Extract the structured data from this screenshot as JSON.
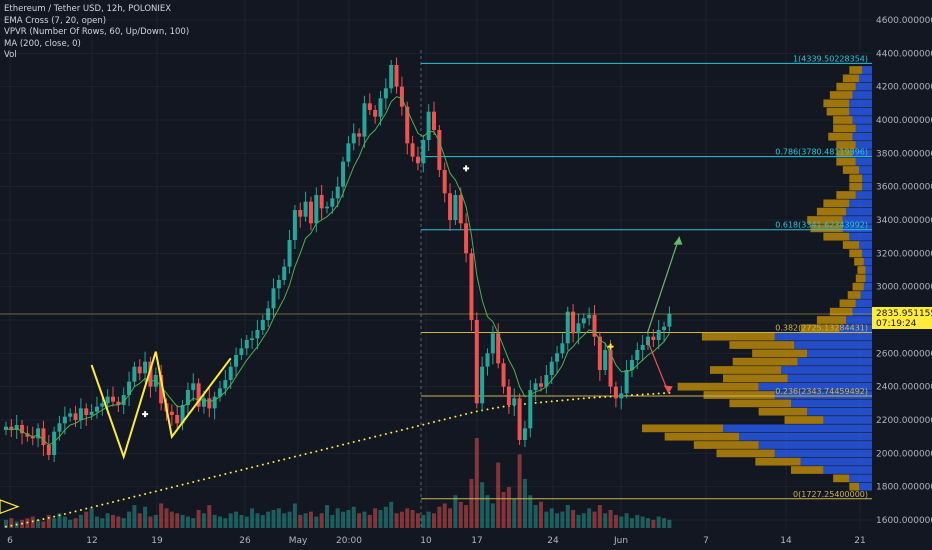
{
  "legend": {
    "symbol": "Ethereum / Tether USD, 12h, POLONIEX",
    "ema": "EMA Cross (7, 20, open)",
    "vpvr": "VPVR (Number Of Rows, 60, Up/Down, 100)",
    "ma": "MA (200, close, 0)",
    "vol": "Vol"
  },
  "price_tag": {
    "price": "2835.95115514",
    "timer": "07:19:24"
  },
  "colors": {
    "background": "#131722",
    "up": "#26a69a",
    "down": "#ef5350",
    "ema": "#4caf50",
    "ma200": "#ffeb3b",
    "fib_cyan": "#26c6da",
    "fib_yellow": "#c9b64a",
    "vp_gold": "#b8860b",
    "vp_blue": "#2962ff"
  },
  "chart_data": {
    "type": "candlestick",
    "y_axis": {
      "ticks": [
        "4600.00000000",
        "4400.00000000",
        "4200.00000000",
        "4000.00000000",
        "3800.00000000",
        "3600.00000000",
        "3400.00000000",
        "3200.00000000",
        "3000.00000000",
        "2800.00000000",
        "2600.00000000",
        "2400.00000000",
        "2200.00000000",
        "2000.00000000",
        "1800.00000000",
        "1600.00000000"
      ],
      "tick_values": [
        4600,
        4400,
        4200,
        4000,
        3800,
        3600,
        3400,
        3200,
        3000,
        2800,
        2600,
        2400,
        2200,
        2000,
        1800,
        1600
      ],
      "range": [
        1540,
        4720
      ]
    },
    "x_axis": {
      "ticks": [
        "6",
        "12",
        "19",
        "26",
        "May",
        "20:00",
        "10",
        "17",
        "24",
        "Jun",
        "7",
        "14",
        "21"
      ]
    },
    "fib_levels": [
      {
        "label": "1(4339.50228354)",
        "value": 4339.5
      },
      {
        "label": "0.786(3780.48119396)",
        "value": 3780.48
      },
      {
        "label": "0.618(3341.62343992)",
        "value": 3341.62
      },
      {
        "label": "0.382(2725.13284431)",
        "value": 2725.13
      },
      {
        "label": "0.236(2343.74459492)",
        "value": 2343.74
      },
      {
        "label": "0(1727.25400000)",
        "value": 1727.25
      }
    ],
    "closes": [
      2160,
      2140,
      2170,
      2120,
      2100,
      2090,
      2150,
      2050,
      1990,
      2130,
      2180,
      2220,
      2240,
      2200,
      2270,
      2230,
      2250,
      2280,
      2300,
      2340,
      2310,
      2290,
      2350,
      2430,
      2520,
      2480,
      2550,
      2400,
      2470,
      2300,
      2250,
      2230,
      2180,
      2290,
      2380,
      2420,
      2280,
      2330,
      2270,
      2340,
      2390,
      2440,
      2520,
      2590,
      2630,
      2680,
      2690,
      2740,
      2800,
      2870,
      2990,
      3040,
      3120,
      3280,
      3460,
      3420,
      3510,
      3380,
      3550,
      3470,
      3480,
      3530,
      3600,
      3750,
      3860,
      3920,
      3900,
      4100,
      4060,
      4020,
      4130,
      4190,
      4330,
      4200,
      4080,
      3860,
      3780,
      3740,
      3880,
      4050,
      3940,
      3700,
      3560,
      3400,
      3550,
      3380,
      3200,
      2800,
      2300,
      2520,
      2600,
      2720,
      2540,
      2400,
      2290,
      2330,
      2080,
      2150,
      2380,
      2420,
      2400,
      2470,
      2550,
      2600,
      2660,
      2850,
      2720,
      2780,
      2810,
      2830,
      2700,
      2500,
      2620,
      2400,
      2330,
      2360,
      2500,
      2560,
      2620,
      2650,
      2700,
      2680,
      2740,
      2760,
      2836
    ],
    "ema_values": [
      2150,
      2140,
      2150,
      2130,
      2115,
      2100,
      2110,
      2080,
      2050,
      2070,
      2100,
      2140,
      2170,
      2180,
      2200,
      2210,
      2220,
      2240,
      2260,
      2280,
      2290,
      2290,
      2310,
      2350,
      2400,
      2420,
      2450,
      2430,
      2440,
      2400,
      2360,
      2320,
      2280,
      2280,
      2300,
      2330,
      2320,
      2320,
      2310,
      2320,
      2340,
      2370,
      2410,
      2460,
      2510,
      2560,
      2600,
      2640,
      2690,
      2740,
      2810,
      2870,
      2930,
      3010,
      3120,
      3200,
      3290,
      3320,
      3380,
      3400,
      3420,
      3450,
      3490,
      3560,
      3640,
      3720,
      3780,
      3860,
      3910,
      3940,
      3990,
      4040,
      4110,
      4140,
      4130,
      4060,
      3990,
      3920,
      3900,
      3930,
      3930,
      3870,
      3780,
      3680,
      3640,
      3570,
      3480,
      3310,
      3070,
      2920,
      2820,
      2790,
      2720,
      2640,
      2560,
      2500,
      2400,
      2340,
      2350,
      2370,
      2380,
      2400,
      2440,
      2480,
      2530,
      2610,
      2640,
      2680,
      2710,
      2740,
      2730,
      2680,
      2660,
      2600,
      2530,
      2490,
      2490,
      2500,
      2530,
      2560,
      2590,
      2610,
      2640,
      2670,
      2720
    ],
    "ma200_values": [
      1560,
      1566,
      1572,
      1578,
      1585,
      1592,
      1599,
      1606,
      1613,
      1620,
      1628,
      1636,
      1644,
      1652,
      1660,
      1668,
      1676,
      1684,
      1692,
      1700,
      1708,
      1716,
      1724,
      1732,
      1740,
      1748,
      1756,
      1764,
      1772,
      1780,
      1788,
      1796,
      1804,
      1812,
      1820,
      1828,
      1836,
      1844,
      1852,
      1860,
      1868,
      1876,
      1884,
      1892,
      1900,
      1908,
      1916,
      1924,
      1932,
      1940,
      1948,
      1956,
      1964,
      1972,
      1980,
      1988,
      1996,
      2004,
      2012,
      2020,
      2028,
      2036,
      2044,
      2052,
      2060,
      2068,
      2076,
      2084,
      2092,
      2100,
      2108,
      2116,
      2124,
      2132,
      2140,
      2148,
      2156,
      2164,
      2172,
      2180,
      2188,
      2196,
      2204,
      2212,
      2220,
      2228,
      2236,
      2244,
      2252,
      2258,
      2264,
      2270,
      2275,
      2280,
      2284,
      2288,
      2292,
      2296,
      2300,
      2303,
      2306,
      2309,
      2312,
      2315,
      2318,
      2321,
      2324,
      2327,
      2330,
      2333,
      2335,
      2337,
      2339,
      2341,
      2343,
      2345,
      2347,
      2349,
      2351,
      2353,
      2355,
      2357,
      2359,
      2361,
      2363
    ],
    "volumes": [
      5,
      6,
      4,
      5,
      6,
      7,
      5,
      4,
      8,
      6,
      9,
      7,
      5,
      6,
      8,
      10,
      12,
      7,
      6,
      9,
      8,
      7,
      6,
      10,
      14,
      9,
      13,
      7,
      8,
      15,
      12,
      10,
      9,
      8,
      7,
      6,
      11,
      9,
      14,
      8,
      7,
      6,
      9,
      10,
      8,
      7,
      12,
      9,
      8,
      10,
      11,
      12,
      9,
      10,
      15,
      8,
      9,
      10,
      7,
      9,
      14,
      8,
      12,
      10,
      11,
      13,
      9,
      10,
      8,
      12,
      11,
      13,
      16,
      9,
      10,
      12,
      11,
      9,
      8,
      10,
      9,
      13,
      15,
      12,
      20,
      16,
      14,
      30,
      55,
      28,
      20,
      15,
      40,
      22,
      25,
      18,
      45,
      30,
      20,
      14,
      16,
      10,
      12,
      9,
      10,
      14,
      11,
      8,
      9,
      12,
      10,
      14,
      9,
      11,
      8,
      7,
      9,
      6,
      8,
      7,
      6,
      5,
      7,
      6,
      5
    ],
    "volume_profile": [
      {
        "price": 4300,
        "up": 8,
        "down": 6
      },
      {
        "price": 4250,
        "up": 10,
        "down": 8
      },
      {
        "price": 4200,
        "up": 12,
        "down": 10
      },
      {
        "price": 4150,
        "up": 14,
        "down": 12
      },
      {
        "price": 4100,
        "up": 16,
        "down": 14
      },
      {
        "price": 4050,
        "up": 14,
        "down": 14
      },
      {
        "price": 4000,
        "up": 12,
        "down": 12
      },
      {
        "price": 3950,
        "up": 14,
        "down": 10
      },
      {
        "price": 3900,
        "up": 15,
        "down": 12
      },
      {
        "price": 3850,
        "up": 12,
        "down": 10
      },
      {
        "price": 3800,
        "up": 10,
        "down": 12
      },
      {
        "price": 3750,
        "up": 12,
        "down": 10
      },
      {
        "price": 3700,
        "up": 10,
        "down": 8
      },
      {
        "price": 3650,
        "up": 8,
        "down": 6
      },
      {
        "price": 3600,
        "up": 8,
        "down": 6
      },
      {
        "price": 3550,
        "up": 12,
        "down": 10
      },
      {
        "price": 3500,
        "up": 16,
        "down": 14
      },
      {
        "price": 3450,
        "up": 18,
        "down": 16
      },
      {
        "price": 3400,
        "up": 22,
        "down": 18
      },
      {
        "price": 3350,
        "up": 20,
        "down": 18
      },
      {
        "price": 3300,
        "up": 16,
        "down": 14
      },
      {
        "price": 3250,
        "up": 10,
        "down": 8
      },
      {
        "price": 3200,
        "up": 8,
        "down": 6
      },
      {
        "price": 3150,
        "up": 6,
        "down": 5
      },
      {
        "price": 3100,
        "up": 5,
        "down": 4
      },
      {
        "price": 3050,
        "up": 6,
        "down": 4
      },
      {
        "price": 3000,
        "up": 7,
        "down": 5
      },
      {
        "price": 2950,
        "up": 8,
        "down": 7
      },
      {
        "price": 2900,
        "up": 10,
        "down": 10
      },
      {
        "price": 2850,
        "up": 14,
        "down": 12
      },
      {
        "price": 2800,
        "up": 18,
        "down": 16
      },
      {
        "price": 2750,
        "up": 24,
        "down": 20
      },
      {
        "price": 2700,
        "up": 45,
        "down": 60
      },
      {
        "price": 2650,
        "up": 40,
        "down": 48
      },
      {
        "price": 2600,
        "up": 34,
        "down": 40
      },
      {
        "price": 2550,
        "up": 40,
        "down": 46
      },
      {
        "price": 2500,
        "up": 44,
        "down": 56
      },
      {
        "price": 2450,
        "up": 40,
        "down": 52
      },
      {
        "price": 2400,
        "up": 50,
        "down": 70
      },
      {
        "price": 2350,
        "up": 44,
        "down": 60
      },
      {
        "price": 2300,
        "up": 38,
        "down": 50
      },
      {
        "price": 2250,
        "up": 30,
        "down": 40
      },
      {
        "price": 2200,
        "up": 24,
        "down": 30
      },
      {
        "price": 2150,
        "up": 50,
        "down": 92
      },
      {
        "price": 2100,
        "up": 46,
        "down": 82
      },
      {
        "price": 2050,
        "up": 40,
        "down": 70
      },
      {
        "price": 2000,
        "up": 36,
        "down": 60
      },
      {
        "price": 1950,
        "up": 28,
        "down": 44
      },
      {
        "price": 1900,
        "up": 20,
        "down": 30
      },
      {
        "price": 1850,
        "up": 10,
        "down": 14
      },
      {
        "price": 1800,
        "up": 6,
        "down": 8
      }
    ],
    "annotations": {
      "zigzag_points": [
        [
          16,
          2530
        ],
        [
          22,
          1980
        ],
        [
          28,
          2610
        ],
        [
          31,
          2100
        ],
        [
          42,
          2570
        ]
      ],
      "arrow_up": {
        "from": [
          118,
          2720
        ],
        "to": [
          124,
          3300
        ]
      },
      "arrow_down": {
        "from": [
          118,
          2680
        ],
        "to": [
          122,
          2360
        ]
      },
      "cross_markers": [
        [
          26,
          2235
        ],
        [
          86,
          3710
        ],
        [
          113,
          2640
        ]
      ]
    }
  }
}
